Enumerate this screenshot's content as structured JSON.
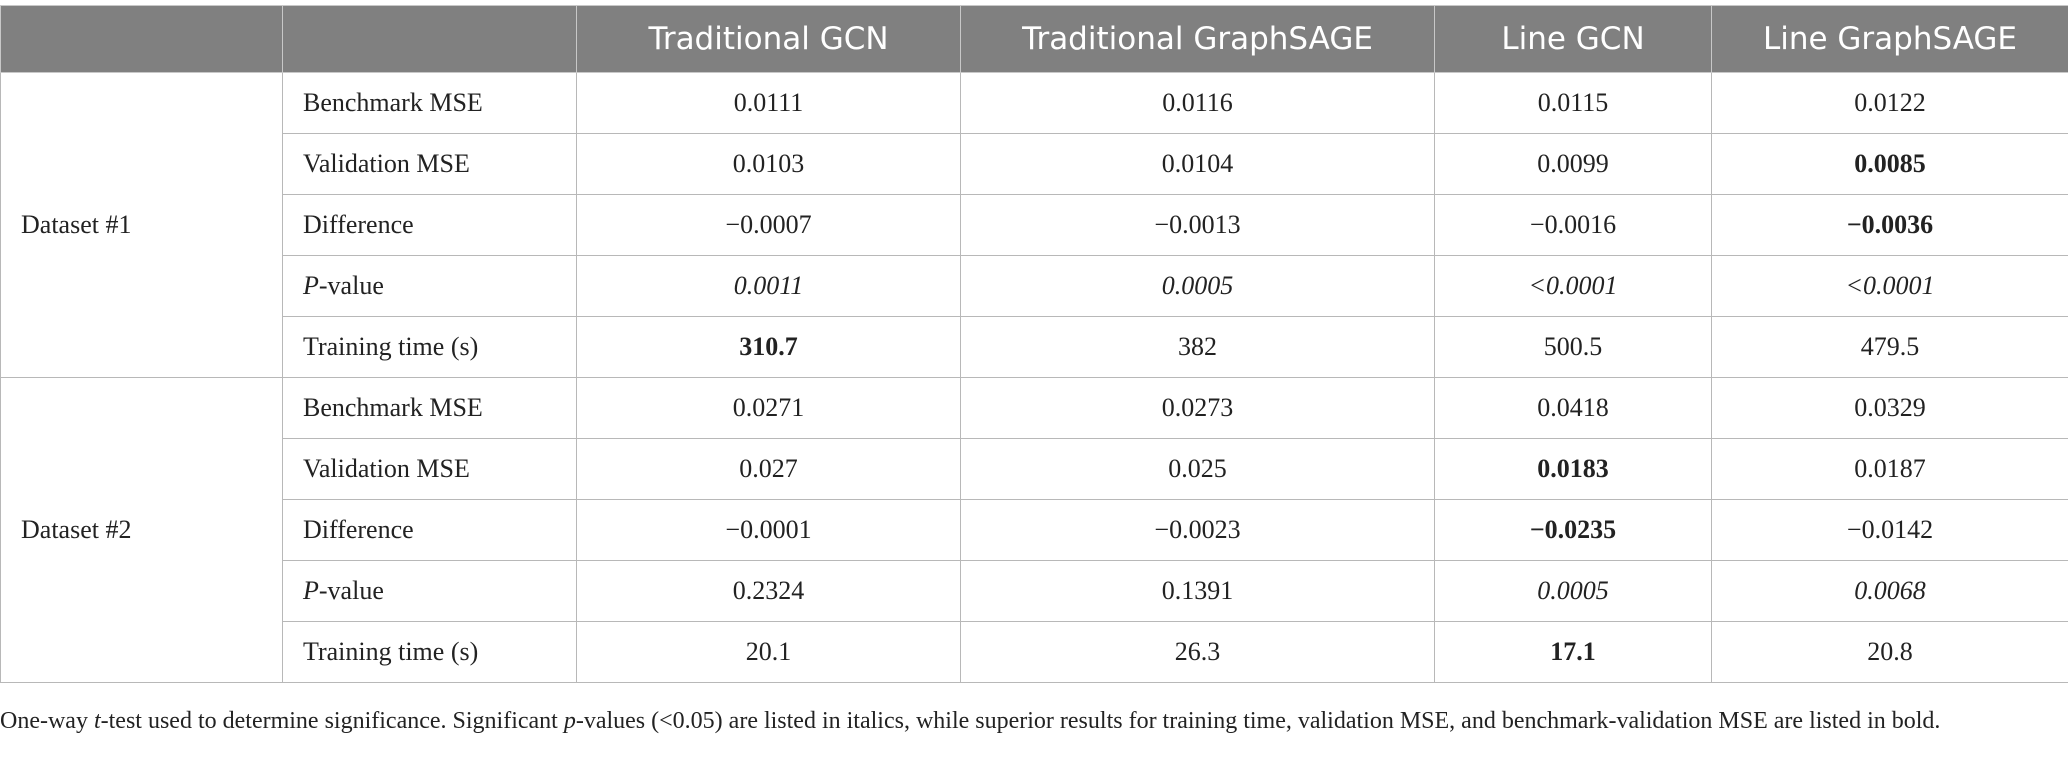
{
  "table": {
    "header": [
      "Traditional GCN",
      "Traditional GraphSAGE",
      "Line GCN",
      "Line GraphSAGE"
    ],
    "groups": [
      {
        "name": "Dataset #1",
        "rows": [
          {
            "label": [
              {
                "text": "Benchmark MSE"
              }
            ],
            "cells": [
              {
                "text": "0.0111"
              },
              {
                "text": "0.0116"
              },
              {
                "text": "0.0115"
              },
              {
                "text": "0.0122"
              }
            ]
          },
          {
            "label": [
              {
                "text": "Validation MSE"
              }
            ],
            "cells": [
              {
                "text": "0.0103"
              },
              {
                "text": "0.0104"
              },
              {
                "text": "0.0099"
              },
              {
                "text": "0.0085",
                "style": "bold"
              }
            ]
          },
          {
            "label": [
              {
                "text": "Difference"
              }
            ],
            "cells": [
              {
                "text": "−0.0007"
              },
              {
                "text": "−0.0013"
              },
              {
                "text": "−0.0016"
              },
              {
                "text": "−0.0036",
                "style": "bold"
              }
            ]
          },
          {
            "label": [
              {
                "text": "P",
                "style": "italic"
              },
              {
                "text": "-value"
              }
            ],
            "cells": [
              {
                "text": "0.0011",
                "style": "italic"
              },
              {
                "text": "0.0005",
                "style": "italic"
              },
              {
                "text": "<0.0001",
                "style": "italic"
              },
              {
                "text": "<0.0001",
                "style": "italic"
              }
            ]
          },
          {
            "label": [
              {
                "text": "Training time (s)"
              }
            ],
            "cells": [
              {
                "text": "310.7",
                "style": "bold"
              },
              {
                "text": "382"
              },
              {
                "text": "500.5"
              },
              {
                "text": "479.5"
              }
            ]
          }
        ]
      },
      {
        "name": "Dataset #2",
        "rows": [
          {
            "label": [
              {
                "text": "Benchmark MSE"
              }
            ],
            "cells": [
              {
                "text": "0.0271"
              },
              {
                "text": "0.0273"
              },
              {
                "text": "0.0418"
              },
              {
                "text": "0.0329"
              }
            ]
          },
          {
            "label": [
              {
                "text": "Validation MSE"
              }
            ],
            "cells": [
              {
                "text": "0.027"
              },
              {
                "text": "0.025"
              },
              {
                "text": "0.0183",
                "style": "bold"
              },
              {
                "text": "0.0187"
              }
            ]
          },
          {
            "label": [
              {
                "text": "Difference"
              }
            ],
            "cells": [
              {
                "text": "−0.0001"
              },
              {
                "text": "−0.0023"
              },
              {
                "text": "−0.0235",
                "style": "bold"
              },
              {
                "text": "−0.0142"
              }
            ]
          },
          {
            "label": [
              {
                "text": "P",
                "style": "italic"
              },
              {
                "text": "-value"
              }
            ],
            "cells": [
              {
                "text": "0.2324"
              },
              {
                "text": "0.1391"
              },
              {
                "text": "0.0005",
                "style": "italic"
              },
              {
                "text": "0.0068",
                "style": "italic"
              }
            ]
          },
          {
            "label": [
              {
                "text": "Training time (s)"
              }
            ],
            "cells": [
              {
                "text": "20.1"
              },
              {
                "text": "26.3"
              },
              {
                "text": "17.1",
                "style": "bold"
              },
              {
                "text": "20.8"
              }
            ]
          }
        ]
      }
    ]
  },
  "caption": [
    {
      "text": "One-way "
    },
    {
      "text": "t",
      "style": "italic"
    },
    {
      "text": "-test used to determine significance. Significant "
    },
    {
      "text": "p",
      "style": "italic"
    },
    {
      "text": "-values (<0.05) are listed in italics, while superior results for training time, validation MSE, and benchmark-validation MSE are listed in bold."
    }
  ]
}
